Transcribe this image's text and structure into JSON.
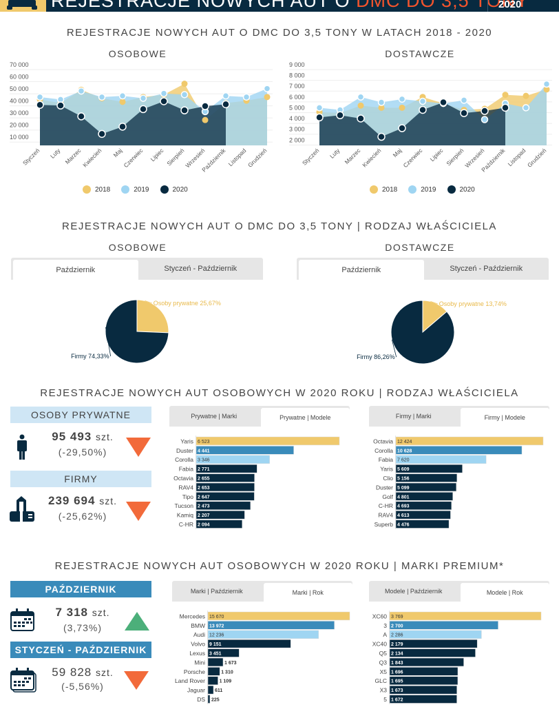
{
  "header": {
    "title_part1": "REJESTRACJE NOWYCH AUT O ",
    "title_accent": "DMC DO 3,5 TONY",
    "year": "2020",
    "colors": {
      "background": "#082a40",
      "logo": "#f0c96c",
      "accent": "#f2542d"
    }
  },
  "section1": {
    "title": "REJESTRACJE NOWYCH AUT O DMC DO 3,5 TONY W LATACH 2018 - 2020",
    "legend": [
      {
        "label": "2018",
        "color": "#f0c96c"
      },
      {
        "label": "2019",
        "color": "#9fd5f2"
      },
      {
        "label": "2020",
        "color": "#082a40"
      }
    ]
  },
  "section2": {
    "title": "REJESTRACJE NOWYCH AUT O DMC DO 3,5 TONY | RODZAJ WŁAŚCICIELA",
    "left": {
      "subtitle": "OSOBOWE",
      "tabs": [
        "Październik",
        "Styczeń - Październik"
      ],
      "active_tab": 0
    },
    "right": {
      "subtitle": "DOSTAWCZE",
      "tabs": [
        "Październik",
        "Styczeń - Październik"
      ],
      "active_tab": 0
    }
  },
  "section3": {
    "title": "REJESTRACJE NOWYCH AUT OSOBOWYCH W 2020 ROKU | RODZAJ WŁAŚCICIELA",
    "stats": [
      {
        "label": "OSOBY PRYWATNE",
        "icon": "person-icon",
        "value": "95 493",
        "unit": "szt.",
        "change": "(-29,50%)",
        "trend": "down"
      },
      {
        "label": "FIRMY",
        "icon": "building-icon",
        "value": "239 694",
        "unit": "szt.",
        "change": "(-25,62%)",
        "trend": "down"
      }
    ],
    "left_tabs": [
      "Prywatne | Marki",
      "Prywatne | Modele"
    ],
    "left_active": 1,
    "right_tabs": [
      "Firmy | Marki",
      "Firmy | Modele"
    ],
    "right_active": 1
  },
  "section4": {
    "title": "REJESTRACJE NOWYCH AUT OSOBOWYCH W 2020 ROKU | MARKI PREMIUM*",
    "stats": [
      {
        "label": "PAŹDZIERNIK",
        "icon": "calendar-icon",
        "value": "7 318",
        "unit": "szt.",
        "change": "(3,73%)",
        "trend": "up"
      },
      {
        "label": "STYCZEŃ - PAŹDZIERNIK",
        "icon": "calendar-stack-icon",
        "value": "59 828",
        "unit": "szt.",
        "change": "(-5,56%)",
        "trend": "down"
      }
    ],
    "left_tabs": [
      "Marki | Październik",
      "Marki | Rok"
    ],
    "left_active": 1,
    "right_tabs": [
      "Modele | Październik",
      "Modele | Rok"
    ],
    "right_active": 1
  },
  "colors": {
    "y2018": "#f0c96c",
    "y2019": "#9fd5f2",
    "y2020": "#082a40",
    "bar_first": "#f0c96c",
    "bar_second": "#3a8bba",
    "bar_third": "#9fd5f2",
    "bar_rest": "#082a40",
    "trend_up": "#4caf7a",
    "trend_down": "#f26a3a"
  },
  "chart_data": [
    {
      "id": "osobowe-line",
      "type": "area",
      "title": "OSOBOWE",
      "categories": [
        "Styczeń",
        "Luty",
        "Marzec",
        "Kwiecień",
        "Maj",
        "Czerwiec",
        "Lipiec",
        "Sierpień",
        "Wrzesień",
        "Październik",
        "Listopad",
        "Grudzień"
      ],
      "yticks": [
        "10 000",
        "20 000",
        "30 000",
        "40 000",
        "50 000",
        "60 000",
        "70 000"
      ],
      "ylim": [
        5000,
        70000
      ],
      "series": [
        {
          "name": "2018",
          "values": [
            43000,
            40000,
            51000,
            44000,
            41000,
            45000,
            47000,
            56000,
            26000,
            40000,
            42000,
            45000
          ]
        },
        {
          "name": "2019",
          "values": [
            45000,
            43000,
            50000,
            45000,
            46000,
            44000,
            48000,
            47000,
            33000,
            46000,
            45000,
            52000
          ]
        },
        {
          "name": "2020",
          "values": [
            38500,
            38000,
            29000,
            14500,
            20500,
            35000,
            41500,
            34000,
            37500,
            39000,
            null,
            null
          ]
        }
      ],
      "legend": "bottom",
      "grid": true
    },
    {
      "id": "dostawcze-line",
      "type": "area",
      "title": "DOSTAWCZE",
      "categories": [
        "Styczeń",
        "Luty",
        "Marzec",
        "Kwiecień",
        "Maj",
        "Czerwiec",
        "Lipiec",
        "Sierpień",
        "Wrzesień",
        "Październik",
        "Listopad",
        "Grudzień"
      ],
      "yticks": [
        "2 000",
        "3 000",
        "4 000",
        "5 000",
        "6 000",
        "7 000",
        "8 000",
        "9 000"
      ],
      "ylim": [
        1700,
        9000
      ],
      "series": [
        {
          "name": "2018",
          "values": [
            4800,
            4700,
            5400,
            5200,
            5200,
            6200,
            5600,
            5000,
            5100,
            6400,
            6300,
            6900
          ]
        },
        {
          "name": "2019",
          "values": [
            5200,
            5000,
            6200,
            5700,
            6000,
            5800,
            5600,
            5900,
            4100,
            5600,
            5200,
            7400
          ]
        },
        {
          "name": "2020",
          "values": [
            4300,
            4500,
            4200,
            2500,
            3300,
            5000,
            5700,
            4700,
            4900,
            5200,
            null,
            null
          ]
        }
      ],
      "legend": "bottom",
      "grid": true
    },
    {
      "id": "osobowe-pie",
      "type": "pie",
      "slices": [
        {
          "label": "Osoby prywatne",
          "value": 25.67,
          "text": "Osoby prywatne 25,67%",
          "color": "#f0c96c"
        },
        {
          "label": "Firmy",
          "value": 74.33,
          "text": "Firmy 74,33%",
          "color": "#082a40"
        }
      ]
    },
    {
      "id": "dostawcze-pie",
      "type": "pie",
      "slices": [
        {
          "label": "Osoby prywatne",
          "value": 13.74,
          "text": "Osoby prywatne 13,74%",
          "color": "#f0c96c"
        },
        {
          "label": "Firmy",
          "value": 86.26,
          "text": "Firmy 86,26%",
          "color": "#082a40"
        }
      ]
    },
    {
      "id": "prywatne-modele",
      "type": "bar",
      "categories": [
        "Yaris",
        "Duster",
        "Corolla",
        "Fabia",
        "Octavia",
        "RAV4",
        "Tipo",
        "Tucson",
        "Kamiq",
        "C-HR"
      ],
      "values": [
        6523,
        4441,
        3346,
        2771,
        2655,
        2653,
        2647,
        2473,
        2207,
        2094
      ],
      "labels": [
        "6 523",
        "4 441",
        "3 346",
        "2 771",
        "2 655",
        "2 653",
        "2 647",
        "2 473",
        "2 207",
        "2 094"
      ]
    },
    {
      "id": "firmy-modele",
      "type": "bar",
      "categories": [
        "Octavia",
        "Corolla",
        "Fabia",
        "Yaris",
        "Clio",
        "Duster",
        "Golf",
        "C-HR",
        "RAV4",
        "Superb"
      ],
      "values": [
        12424,
        10628,
        7620,
        5609,
        5156,
        5099,
        4801,
        4693,
        4613,
        4476
      ],
      "labels": [
        "12 424",
        "10 628",
        "7 620",
        "5 609",
        "5 156",
        "5 099",
        "4 801",
        "4 693",
        "4 613",
        "4 476"
      ]
    },
    {
      "id": "premium-marki-rok",
      "type": "bar",
      "categories": [
        "Mercedes",
        "BMW",
        "Audi",
        "Volvo",
        "Lexus",
        "Mini",
        "Porsche",
        "Land Rover",
        "Jaguar",
        "DS"
      ],
      "values": [
        15670,
        13972,
        12236,
        9151,
        3451,
        1673,
        1310,
        1109,
        611,
        225
      ],
      "labels": [
        "15 670",
        "13 972",
        "12 236",
        "9 151",
        "3 451",
        "1 673",
        "1 310",
        "1 109",
        "611",
        "225"
      ]
    },
    {
      "id": "premium-modele-rok",
      "type": "bar",
      "categories": [
        "XC60",
        "3",
        "A",
        "XC40",
        "Q5",
        "Q3",
        "X5",
        "GLC",
        "X3",
        "5"
      ],
      "values": [
        3769,
        2700,
        2286,
        2179,
        2134,
        1843,
        1696,
        1695,
        1673,
        1672
      ],
      "labels": [
        "3 769",
        "2 700",
        "2 286",
        "2 179",
        "2 134",
        "1 843",
        "1 696",
        "1 695",
        "1 673",
        "1 672"
      ]
    }
  ]
}
